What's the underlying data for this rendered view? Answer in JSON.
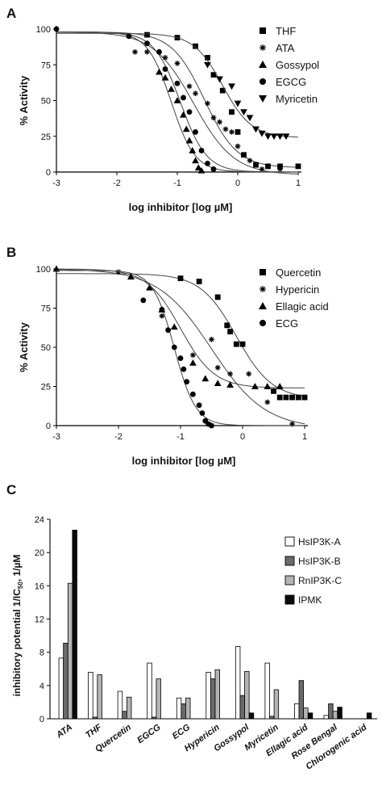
{
  "chart_data": [
    {
      "panel": "A",
      "type": "scatter",
      "xlabel": "log inhibitor [log µM]",
      "ylabel": "% Activity",
      "xlim": [
        -3,
        1
      ],
      "ylim": [
        0,
        100
      ],
      "xticks": [
        "-3",
        "-2",
        "-1",
        "0",
        "1"
      ],
      "yticks": [
        "0",
        "25",
        "50",
        "75",
        "100"
      ],
      "legend_position": "top-right",
      "series": [
        {
          "name": "THF",
          "marker": "square",
          "x": [
            -1.5,
            -1.0,
            -0.7,
            -0.5,
            -0.4,
            -0.25,
            -0.1,
            0.0,
            0.1,
            0.3,
            0.5,
            0.7,
            1.0
          ],
          "y": [
            96,
            94,
            88,
            80,
            68,
            57,
            42,
            28,
            12,
            5,
            4,
            4,
            4
          ],
          "curve": {
            "top": 98,
            "bottom": 3,
            "ic50": -0.55,
            "slope": 1.6
          }
        },
        {
          "name": "ATA",
          "marker": "star",
          "x": [
            -1.7,
            -1.5,
            -1.2,
            -1.0,
            -0.8,
            -0.7,
            -0.5,
            -0.4,
            -0.3,
            -0.2,
            -0.1,
            0.0,
            0.2,
            0.4,
            0.7
          ],
          "y": [
            84,
            84,
            80,
            76,
            60,
            55,
            48,
            38,
            35,
            30,
            28,
            18,
            8,
            2,
            2
          ],
          "curve": {
            "top": 98,
            "bottom": -2,
            "ic50": -0.73,
            "slope": 1.3
          }
        },
        {
          "name": "Gossypol",
          "marker": "triangle-up",
          "x": [
            -1.3,
            -1.2,
            -1.1,
            -1.0,
            -0.9,
            -0.85,
            -0.8,
            -0.75,
            -0.7,
            -0.65,
            -0.6
          ],
          "y": [
            70,
            66,
            58,
            50,
            40,
            30,
            22,
            15,
            8,
            3,
            1
          ],
          "curve": {
            "top": 98,
            "bottom": 0,
            "ic50": -1.1,
            "slope": 2.2
          }
        },
        {
          "name": "EGCG",
          "marker": "circle",
          "x": [
            -3,
            -1.8,
            -1.5,
            -1.3,
            -1.2,
            -1.0,
            -0.9,
            -0.8,
            -0.7,
            -0.6,
            -0.5,
            -0.4
          ],
          "y": [
            100,
            95,
            90,
            84,
            72,
            62,
            52,
            42,
            28,
            15,
            6,
            2
          ],
          "curve": {
            "top": 98,
            "bottom": 0,
            "ic50": -0.95,
            "slope": 2.0
          }
        },
        {
          "name": "Myricetin",
          "marker": "triangle-down",
          "x": [
            -0.5,
            -0.3,
            -0.1,
            0.0,
            0.1,
            0.2,
            0.3,
            0.4,
            0.5,
            0.6,
            0.7,
            0.8
          ],
          "y": [
            75,
            65,
            60,
            48,
            42,
            38,
            30,
            27,
            25,
            25,
            25,
            25
          ],
          "curve": {
            "top": 97,
            "bottom": 24,
            "ic50": -0.25,
            "slope": 1.8
          }
        }
      ]
    },
    {
      "panel": "B",
      "type": "scatter",
      "xlabel": "log inhibitor [log µM]",
      "ylabel": "% Activity",
      "xlim": [
        -3,
        1
      ],
      "ylim": [
        0,
        100
      ],
      "xticks": [
        "-3",
        "-2",
        "-1",
        "0",
        "1"
      ],
      "yticks": [
        "0",
        "25",
        "50",
        "75",
        "100"
      ],
      "legend_position": "top-right",
      "series": [
        {
          "name": "Quercetin",
          "marker": "square",
          "x": [
            -1.0,
            -0.7,
            -0.4,
            -0.25,
            -0.2,
            -0.1,
            0.0,
            0.5,
            0.6,
            0.7,
            0.8,
            0.9,
            1.0
          ],
          "y": [
            94,
            92,
            82,
            64,
            60,
            52,
            52,
            22,
            18,
            18,
            18,
            18,
            18
          ],
          "curve": {
            "top": 97,
            "bottom": 17,
            "ic50": -0.1,
            "slope": 1.5
          }
        },
        {
          "name": "Hypericin",
          "marker": "star",
          "x": [
            -2.0,
            -1.3,
            -0.8,
            -0.5,
            -0.4,
            -0.2,
            0.1,
            0.4,
            0.8
          ],
          "y": [
            98,
            70,
            45,
            55,
            37,
            33,
            33,
            15,
            1
          ],
          "curve": {
            "top": 100,
            "bottom": -2,
            "ic50": -0.5,
            "slope": 1.0
          }
        },
        {
          "name": "Ellagic acid",
          "marker": "triangle-up",
          "x": [
            -3,
            -1.8,
            -1.5,
            -1.3,
            -1.1,
            -0.8,
            -0.6,
            -0.4,
            -0.2,
            0.2,
            0.4,
            0.6
          ],
          "y": [
            100,
            95,
            88,
            74,
            63,
            40,
            30,
            27,
            26,
            25,
            25,
            25
          ],
          "curve": {
            "top": 100,
            "bottom": 24,
            "ic50": -1.0,
            "slope": 1.6
          }
        },
        {
          "name": "ECG",
          "marker": "circle",
          "x": [
            -1.6,
            -1.3,
            -1.2,
            -1.1,
            -1.0,
            -0.95,
            -0.9,
            -0.8,
            -0.7,
            -0.65,
            -0.6,
            -0.55,
            -0.5
          ],
          "y": [
            80,
            74,
            61,
            50,
            43,
            36,
            28,
            20,
            13,
            8,
            3,
            1,
            0
          ],
          "curve": {
            "top": 99,
            "bottom": 0,
            "ic50": -1.1,
            "slope": 2.5
          }
        }
      ]
    },
    {
      "panel": "C",
      "type": "bar",
      "ylabel_main": "inhibitory potential 1/IC",
      "ylabel_sub": "50",
      "ylabel_tail": ", 1/µM",
      "ylim": [
        0,
        24
      ],
      "yticks": [
        "0",
        "4",
        "8",
        "12",
        "16",
        "20",
        "24"
      ],
      "legend_position": "top-right",
      "categories": [
        "ATA",
        "THF",
        "Quercetin",
        "EGCG",
        "ECG",
        "Hypericin",
        "Gossypol",
        "Myricetin",
        "Ellagic acid",
        "Rose Bengal",
        "Chlorogenic acid"
      ],
      "series": [
        {
          "name": "HsIP3K-A",
          "color": "#ffffff",
          "values": [
            7.3,
            5.6,
            3.3,
            6.7,
            2.5,
            5.6,
            8.7,
            6.7,
            1.8,
            0.4,
            0.0
          ]
        },
        {
          "name": "HsIP3K-B",
          "color": "#6b6b6b",
          "values": [
            9.1,
            0.2,
            0.9,
            0.2,
            1.8,
            4.8,
            2.8,
            0.3,
            4.6,
            1.8,
            0.0
          ]
        },
        {
          "name": "RnIP3K-C",
          "color": "#b4b4b4",
          "values": [
            16.3,
            5.3,
            2.6,
            4.8,
            2.5,
            5.9,
            5.7,
            3.5,
            1.3,
            0.9,
            0.0
          ]
        },
        {
          "name": "IPMK",
          "color": "#0a0a0a",
          "values": [
            22.7,
            0.0,
            0.0,
            0.0,
            0.0,
            0.0,
            0.7,
            0.0,
            0.7,
            1.4,
            0.7
          ]
        }
      ]
    }
  ],
  "panel_labels": {
    "a": "A",
    "b": "B",
    "c": "C"
  },
  "colors": {
    "ink": "#111111",
    "axis": "#000000"
  }
}
